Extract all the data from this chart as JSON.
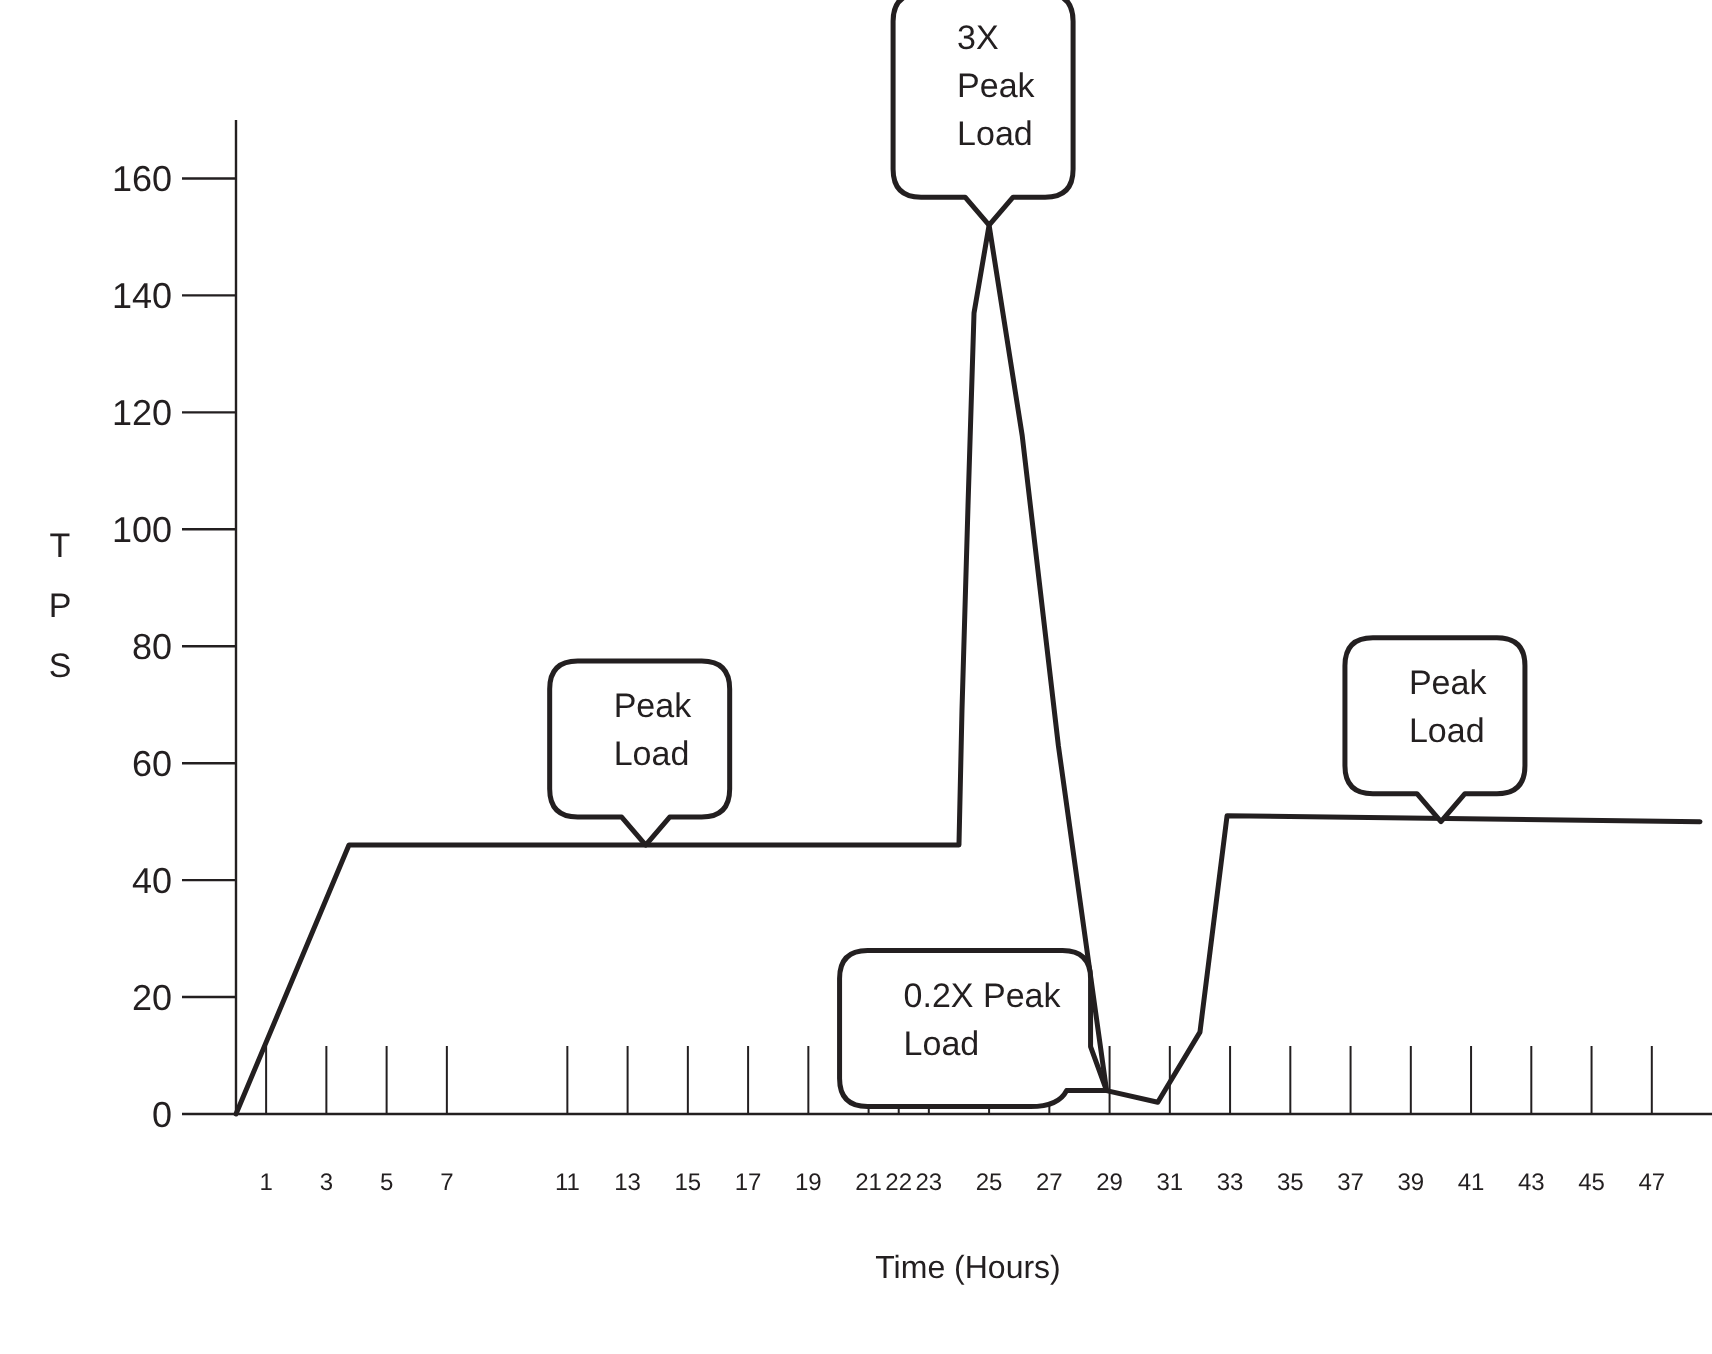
{
  "chart_data": {
    "type": "line",
    "xlabel": "Time (Hours)",
    "ylabel": "TPS",
    "x": [
      0,
      3.75,
      24,
      24.1,
      24.3,
      24.5,
      25,
      26.1,
      27.3,
      28.9,
      30.6,
      32,
      32.9,
      48.6
    ],
    "series": [
      {
        "color": "#231f20",
        "values": [
          0,
          46,
          46,
          69,
          104,
          137,
          152,
          116,
          63,
          4,
          2,
          14,
          51,
          50
        ]
      }
    ],
    "xlim": [
      0,
      48.6
    ],
    "xticks": [
      1,
      3,
      5,
      7,
      11,
      13,
      15,
      17,
      19,
      21,
      22,
      23,
      25,
      27,
      29,
      31,
      33,
      35,
      37,
      39,
      41,
      43,
      45,
      47
    ],
    "ylim": [
      0,
      170
    ],
    "yticks": [
      0,
      20,
      40,
      60,
      80,
      100,
      120,
      140,
      160
    ],
    "grid": false,
    "marker": "none",
    "line_style": "solid",
    "annotations": [
      {
        "text": "Peak\nLoad",
        "x": 13.6,
        "y": 46
      },
      {
        "text": "3X\nPeak\nLoad",
        "x": 25,
        "y": 152
      },
      {
        "text": "0.2X Peak\nLoad",
        "x": 28.9,
        "y": 4
      },
      {
        "text": "Peak\nLoad",
        "x": 40,
        "y": 50
      }
    ]
  }
}
